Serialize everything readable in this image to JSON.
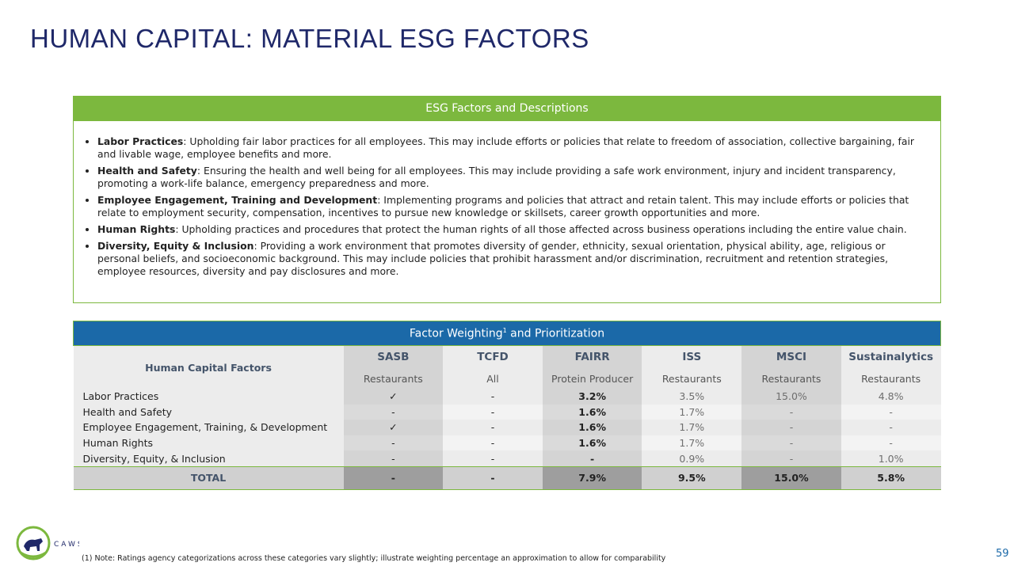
{
  "title": "HUMAN CAPITAL: MATERIAL ESG FACTORS",
  "factors_box": {
    "header": "ESG Factors and Descriptions",
    "bullets": [
      {
        "term": "Labor Practices",
        "text": ": Upholding fair labor practices for all employees. This may include efforts or policies that relate to freedom of association, collective bargaining, fair and livable wage, employee benefits and more."
      },
      {
        "term": "Health and Safety",
        "text": ": Ensuring the health and well being for all employees. This may include providing a safe work environment, injury and incident transparency, promoting a work-life balance, emergency preparedness and more."
      },
      {
        "term": "Employee Engagement, Training and Development",
        "text": ": Implementing programs and policies that attract and retain talent. This may include efforts or policies that relate to employment security, compensation, incentives to pursue new knowledge or skillsets, career growth opportunities and more."
      },
      {
        "term": "Human Rights",
        "text": ": Upholding practices and procedures that protect the human rights of all those affected across business operations including the entire value chain."
      },
      {
        "term": "Diversity, Equity & Inclusion",
        "text": ": Providing a work environment that promotes diversity of gender, ethnicity, sexual orientation, physical ability, age, religious or personal beliefs, and socioeconomic background. This may include policies that prohibit harassment and/or discrimination, recruitment and retention strategies, employee resources, diversity and pay disclosures and more."
      }
    ]
  },
  "table": {
    "header": "Factor Weighting",
    "header_sup": "1",
    "header_rest": "and Prioritization",
    "row_header": "Human Capital Factors",
    "columns": [
      "SASB",
      "TCFD",
      "FAIRR",
      "ISS",
      "MSCI",
      "Sustainalytics"
    ],
    "subcolumns": [
      "Restaurants",
      "All",
      "Protein Producer",
      "Restaurants",
      "Restaurants",
      "Restaurants"
    ],
    "rows": [
      {
        "label": "Labor Practices",
        "cells": [
          "✓",
          "-",
          "3.2%",
          "3.5%",
          "15.0%",
          "4.8%"
        ]
      },
      {
        "label": "Health and Safety",
        "cells": [
          "-",
          "-",
          "1.6%",
          "1.7%",
          "-",
          "-"
        ]
      },
      {
        "label": "Employee Engagement, Training, & Development",
        "cells": [
          "✓",
          "-",
          "1.6%",
          "1.7%",
          "-",
          "-"
        ]
      },
      {
        "label": "Human Rights",
        "cells": [
          "-",
          "-",
          "1.6%",
          "1.7%",
          "-",
          "-"
        ]
      },
      {
        "label": "Diversity, Equity, & Inclusion",
        "cells": [
          "-",
          "-",
          "-",
          "0.9%",
          "-",
          "1.0%"
        ]
      }
    ],
    "total": {
      "label": "TOTAL",
      "cells": [
        "-",
        "-",
        "7.9%",
        "9.5%",
        "15.0%",
        "5.8%"
      ]
    }
  },
  "footnote": "(1) Note: Ratings agency categorizations across these categories vary slightly; illustrate weighting percentage an approximation to allow for comparability",
  "logo_text": "CAWS",
  "page_number": "59"
}
